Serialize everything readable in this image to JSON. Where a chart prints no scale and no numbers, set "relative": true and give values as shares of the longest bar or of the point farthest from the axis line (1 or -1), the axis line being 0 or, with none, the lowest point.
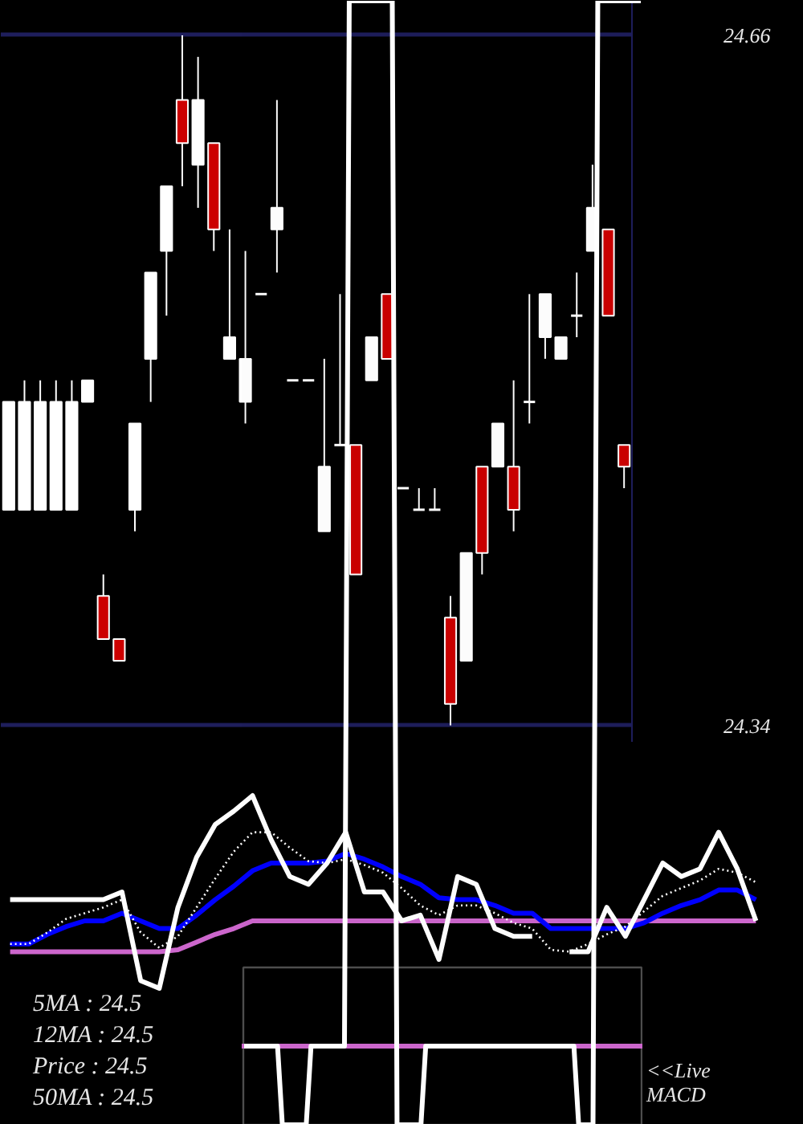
{
  "chart_data": [
    {
      "type": "candlestick",
      "categories": [
        null,
        null,
        null,
        null,
        null,
        null,
        null,
        null,
        null,
        null,
        null,
        null,
        null,
        null,
        null,
        null,
        null,
        null,
        null,
        null,
        null,
        null,
        null,
        null,
        null,
        null,
        null,
        null,
        null,
        null,
        null,
        null,
        null,
        null,
        null,
        null,
        null,
        null,
        null,
        null
      ],
      "ohlc": [
        [
          24.44,
          24.49,
          24.44,
          24.49
        ],
        [
          24.44,
          24.5,
          24.44,
          24.49
        ],
        [
          24.44,
          24.5,
          24.44,
          24.49
        ],
        [
          24.44,
          24.5,
          24.44,
          24.49
        ],
        [
          24.44,
          24.5,
          24.44,
          24.49
        ],
        [
          24.49,
          24.5,
          24.49,
          24.5
        ],
        [
          24.4,
          24.41,
          24.38,
          24.38
        ],
        [
          24.38,
          24.38,
          24.37,
          24.37
        ],
        [
          24.44,
          24.48,
          24.43,
          24.48
        ],
        [
          24.51,
          24.55,
          24.49,
          24.55
        ],
        [
          24.56,
          24.59,
          24.53,
          24.59
        ],
        [
          24.63,
          24.66,
          24.59,
          24.61
        ],
        [
          24.6,
          24.65,
          24.58,
          24.63
        ],
        [
          24.61,
          24.61,
          24.56,
          24.57
        ],
        [
          24.51,
          24.57,
          24.51,
          24.52
        ],
        [
          24.49,
          24.56,
          24.48,
          24.51
        ],
        [
          24.54,
          24.54,
          24.54,
          24.54
        ],
        [
          24.57,
          24.63,
          24.55,
          24.58
        ],
        [
          24.5,
          24.5,
          24.5,
          24.5
        ],
        [
          24.5,
          24.5,
          24.5,
          24.5
        ],
        [
          24.43,
          24.51,
          24.43,
          24.46
        ],
        [
          24.47,
          24.54,
          24.47,
          24.47
        ],
        [
          24.47,
          24.47,
          24.41,
          24.41
        ],
        [
          24.5,
          24.52,
          24.5,
          24.52
        ],
        [
          24.54,
          24.54,
          24.51,
          24.51
        ],
        [
          24.45,
          24.45,
          24.45,
          24.45
        ],
        [
          24.44,
          24.45,
          24.44,
          24.44
        ],
        [
          24.44,
          24.45,
          24.44,
          24.44
        ],
        [
          24.39,
          24.4,
          24.34,
          24.35
        ],
        [
          24.37,
          24.42,
          24.37,
          24.42
        ],
        [
          24.46,
          24.46,
          24.41,
          24.42
        ],
        [
          24.46,
          24.48,
          24.46,
          24.48
        ],
        [
          24.46,
          24.5,
          24.43,
          24.44
        ],
        [
          24.49,
          24.54,
          24.48,
          24.49
        ],
        [
          24.52,
          24.54,
          24.51,
          24.54
        ],
        [
          24.51,
          24.52,
          24.51,
          24.52
        ],
        [
          24.53,
          24.55,
          24.52,
          24.53
        ],
        [
          24.56,
          24.6,
          24.56,
          24.58
        ],
        [
          24.57,
          24.57,
          24.53,
          24.53
        ],
        [
          24.47,
          24.47,
          24.45,
          24.46
        ]
      ],
      "colors": [
        "#ffffff",
        "#ffffff",
        "#ffffff",
        "#ffffff",
        "#ffffff",
        "#ffffff",
        "#cc0000",
        "#cc0000",
        "#ffffff",
        "#ffffff",
        "#ffffff",
        "#cc0000",
        "#ffffff",
        "#cc0000",
        "#ffffff",
        "#ffffff",
        "#ffffff",
        "#ffffff",
        "#ffffff",
        "#ffffff",
        "#ffffff",
        "#ffffff",
        "#cc0000",
        "#ffffff",
        "#cc0000",
        "#ffffff",
        "#ffffff",
        "#ffffff",
        "#cc0000",
        "#ffffff",
        "#cc0000",
        "#ffffff",
        "#cc0000",
        "#ffffff",
        "#ffffff",
        "#ffffff",
        "#ffffff",
        "#ffffff",
        "#cc0000",
        "#cc0000"
      ],
      "ylim": [
        24.332,
        24.676
      ],
      "yticks": [
        24.34,
        24.66
      ],
      "grid": "y",
      "tick_labels": "y"
    },
    {
      "type": "line",
      "relative": true,
      "tick_labels": false,
      "categories": [
        null,
        null,
        null,
        null,
        null,
        null,
        null,
        null,
        null,
        null,
        null,
        null,
        null,
        null,
        null,
        null,
        null,
        null,
        null,
        null,
        null,
        null,
        null,
        null,
        null,
        null,
        null,
        null,
        null,
        null,
        null,
        null,
        null,
        null,
        null,
        null,
        null,
        null,
        null,
        null,
        null
      ],
      "series": [
        {
          "color": "#cc66cc",
          "values": [
            0.19,
            0.19,
            0.19,
            0.19,
            0.19,
            0.19,
            0.19,
            0.19,
            0.19,
            0.2,
            0.24,
            0.28,
            0.31,
            0.35,
            0.35,
            0.35,
            0.35,
            0.35,
            0.35,
            0.35,
            0.35,
            0.35,
            0.35,
            0.35,
            0.35,
            0.35,
            0.35,
            0.35,
            0.35,
            0.35,
            0.35,
            0.35,
            0.35,
            0.35,
            0.35,
            0.35,
            0.35,
            0.35,
            0.35,
            0.35,
            0.35
          ]
        },
        {
          "color": "#0000ff",
          "values": [
            0.23,
            0.23,
            0.28,
            0.32,
            0.35,
            0.35,
            0.39,
            0.35,
            0.31,
            0.31,
            0.38,
            0.46,
            0.53,
            0.61,
            0.65,
            0.65,
            0.65,
            0.66,
            0.7,
            0.67,
            0.63,
            0.58,
            0.54,
            0.47,
            0.46,
            0.46,
            0.43,
            0.39,
            0.39,
            0.31,
            0.31,
            0.31,
            0.31,
            0.31,
            0.34,
            0.39,
            0.43,
            0.46,
            0.51,
            0.51,
            0.46
          ]
        },
        {
          "color": "#ffffff",
          "line_style": "dotted",
          "values": [
            0.23,
            0.23,
            0.29,
            0.36,
            0.39,
            0.42,
            0.46,
            0.29,
            0.21,
            0.27,
            0.42,
            0.57,
            0.71,
            0.81,
            0.81,
            0.73,
            0.66,
            0.65,
            0.67,
            0.64,
            0.6,
            0.52,
            0.43,
            0.38,
            0.43,
            0.43,
            0.39,
            0.34,
            0.31,
            0.2,
            0.19,
            0.23,
            0.28,
            0.32,
            0.4,
            0.48,
            0.52,
            0.56,
            0.62,
            0.6,
            0.55
          ]
        },
        {
          "color": "#ffffff",
          "values": [
            0.46,
            0.46,
            0.46,
            0.46,
            0.46,
            0.46,
            0.5,
            0.04,
            0,
            0.42,
            0.68,
            0.85,
            0.92,
            1,
            0.77,
            0.58,
            0.54,
            0.65,
            0.81,
            0.5,
            0.5,
            0.35,
            0.38,
            0.15,
            0.58,
            0.54,
            0.31,
            0.27,
            0.27,
            null,
            0.19,
            0.19,
            0.42,
            0.27,
            0.46,
            0.65,
            0.58,
            0.62,
            0.81,
            0.62,
            0.35
          ]
        }
      ],
      "annotations": [
        "5MA : 24.5",
        "12MA : 24.5",
        "Price   : 24.5",
        "50MA : 24.5",
        "<<Live",
        "MACD"
      ]
    },
    {
      "type": "line",
      "relative": true,
      "tick_labels": false,
      "categories": [
        null,
        null,
        null,
        null,
        null,
        null,
        null,
        null,
        null,
        null,
        null,
        null,
        null,
        null,
        null,
        null,
        null,
        null,
        null,
        null,
        null,
        null,
        null,
        null,
        null,
        null,
        null,
        null,
        null,
        null,
        null,
        null,
        null,
        null,
        null,
        null,
        null,
        null,
        null,
        null,
        null,
        null,
        null,
        null,
        null,
        null,
        null,
        null,
        null,
        null,
        null,
        null,
        null,
        null,
        null,
        null,
        null,
        null,
        null,
        null,
        null,
        null,
        null,
        null,
        null,
        null,
        null,
        null,
        null,
        null,
        null,
        null,
        null,
        null,
        null,
        null,
        null,
        null,
        null,
        null,
        null,
        null,
        null,
        null
      ],
      "series": [
        {
          "color": "#ffffff",
          "values": [
            0.07,
            0.07,
            0.07,
            0.07,
            0.07,
            0.07,
            0.07,
            0.07,
            0,
            0,
            0,
            0,
            0,
            0,
            0.07,
            0.07,
            0.07,
            0.07,
            0.07,
            0.07,
            0.07,
            0.07,
            1,
            1,
            1,
            1,
            1,
            1,
            1,
            1,
            1,
            1,
            0,
            0,
            0,
            0,
            0,
            0,
            0.07,
            0.07,
            0.07,
            0.07,
            0.07,
            0.07,
            0.07,
            0.07,
            0.07,
            0.07,
            0.07,
            0.07,
            0.07,
            0.07,
            0.07,
            0.07,
            0.07,
            0.07,
            0.07,
            0.07,
            0.07,
            0.07,
            0.07,
            0.07,
            0.07,
            0.07,
            0.07,
            0.07,
            0.07,
            0.07,
            0.07,
            0.07,
            0,
            0,
            0,
            0,
            1,
            1,
            1,
            1,
            1,
            1,
            1,
            1,
            1,
            1
          ]
        }
      ],
      "ref_lines": [
        {
          "axis": "y",
          "value": 0.07,
          "color": "#cc66cc"
        }
      ],
      "bands": [
        {
          "axis": "y",
          "from": 0,
          "to": 0.14,
          "color": "#000000"
        }
      ]
    }
  ]
}
